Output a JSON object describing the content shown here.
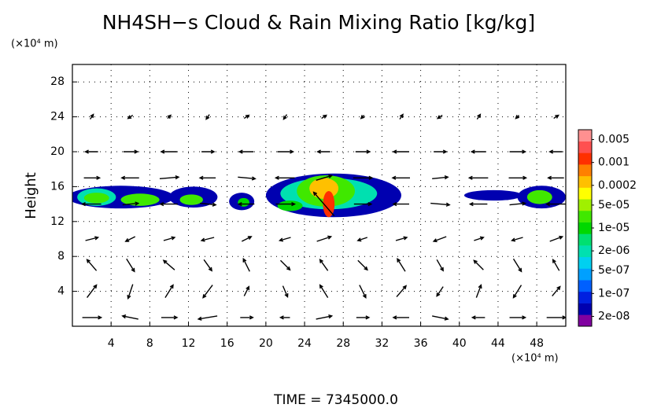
{
  "chart_data": {
    "type": "contour",
    "title": "NH4SH−s Cloud & Rain Mixing Ratio [kg/kg]",
    "x_unit": "(×10⁴ m)",
    "y_unit": "(×10⁴ m)",
    "ylabel": "Height",
    "annotation": "TIME = 7345000.0",
    "xlim": [
      0,
      51
    ],
    "ylim": [
      0,
      30
    ],
    "xticks": [
      4,
      8,
      12,
      16,
      20,
      24,
      28,
      32,
      36,
      40,
      44,
      48
    ],
    "yticks": [
      4,
      8,
      12,
      16,
      20,
      24,
      28
    ],
    "grid": true,
    "colorbar": {
      "log": true,
      "clim": [
        1e-08,
        0.01
      ],
      "colors": [
        "#8000a0",
        "#0000b0",
        "#0020e0",
        "#0060ff",
        "#00a0ff",
        "#00d0f0",
        "#00e0b0",
        "#00e070",
        "#00d800",
        "#40e800",
        "#a0f000",
        "#ffff00",
        "#ffc000",
        "#ff8000",
        "#ff3000",
        "#ff5050",
        "#ff9090"
      ],
      "ticks": [
        0.005,
        0.001,
        0.0002,
        {
          "value": 5e-05,
          "label": "5e-05"
        },
        {
          "value": 1e-05,
          "label": "1e-05"
        },
        {
          "value": 2e-06,
          "label": "2e-06"
        },
        {
          "value": 5e-07,
          "label": "5e-07"
        },
        {
          "value": 1e-07,
          "label": "1e-07"
        },
        {
          "value": 2e-08,
          "label": "2e-08"
        }
      ]
    },
    "patches": [
      {
        "x": 5,
        "y": 14.8,
        "rx": 5.5,
        "ry": 1.3,
        "value": 5e-08
      },
      {
        "x": 2.5,
        "y": 14.8,
        "rx": 2,
        "ry": 1,
        "value": 2e-06
      },
      {
        "x": 2.5,
        "y": 14.7,
        "rx": 1.3,
        "ry": 0.6,
        "value": 3e-05
      },
      {
        "x": 7,
        "y": 14.5,
        "rx": 2,
        "ry": 0.7,
        "value": 3e-05
      },
      {
        "x": 12.5,
        "y": 14.8,
        "rx": 2.5,
        "ry": 1.2,
        "value": 5e-08
      },
      {
        "x": 12.3,
        "y": 14.5,
        "rx": 1.2,
        "ry": 0.6,
        "value": 2e-05
      },
      {
        "x": 17.5,
        "y": 14.3,
        "rx": 1.3,
        "ry": 1,
        "value": 5e-08
      },
      {
        "x": 17.7,
        "y": 14.2,
        "rx": 0.6,
        "ry": 0.5,
        "value": 1e-05
      },
      {
        "x": 27,
        "y": 15,
        "rx": 7,
        "ry": 2.5,
        "value": 5e-08
      },
      {
        "x": 26.5,
        "y": 15.2,
        "rx": 5,
        "ry": 1.8,
        "value": 2e-06
      },
      {
        "x": 22.5,
        "y": 13.8,
        "rx": 1.3,
        "ry": 0.6,
        "value": 1e-05
      },
      {
        "x": 26.2,
        "y": 15.5,
        "rx": 3,
        "ry": 1.8,
        "value": 3e-05
      },
      {
        "x": 26,
        "y": 15.8,
        "rx": 1.5,
        "ry": 1.2,
        "value": 0.0002
      },
      {
        "x": 26.5,
        "y": 14,
        "rx": 0.6,
        "ry": 1.5,
        "value": 0.001
      },
      {
        "x": 43.5,
        "y": 15,
        "rx": 3,
        "ry": 0.6,
        "value": 5e-08
      },
      {
        "x": 48.5,
        "y": 14.8,
        "rx": 2.5,
        "ry": 1.3,
        "value": 5e-08
      },
      {
        "x": 48.3,
        "y": 14.8,
        "rx": 1.3,
        "ry": 0.8,
        "value": 2e-05
      }
    ],
    "vectors": {
      "x": [
        2,
        6,
        10,
        14,
        18,
        22,
        26,
        30,
        34,
        38,
        42,
        46,
        50
      ],
      "y": [
        1,
        4,
        7,
        10,
        14,
        17,
        20,
        24
      ],
      "u": [
        [
          1.2,
          -1,
          1,
          -1.2,
          0.8,
          -0.6,
          1,
          0.8,
          -1,
          1,
          -0.8,
          1,
          1.2
        ],
        [
          0.6,
          -0.3,
          0.5,
          -0.6,
          0.3,
          0.3,
          -0.5,
          0.4,
          0.6,
          -0.4,
          0.3,
          -0.5,
          0.5
        ],
        [
          -0.6,
          0.5,
          -0.7,
          0.5,
          -0.4,
          0.6,
          -0.5,
          0.6,
          -0.5,
          0.4,
          -0.6,
          0.5,
          -0.4
        ],
        [
          0.8,
          -0.6,
          0.7,
          -0.8,
          0.6,
          -0.7,
          0.9,
          -0.6,
          0.7,
          -0.8,
          0.6,
          -0.7,
          0.8
        ],
        [
          -1.2,
          1,
          -1.1,
          1,
          -1,
          1.2,
          -1.3,
          1.1,
          -1,
          1.2,
          -1.1,
          1,
          -1.2
        ],
        [
          1,
          -1.1,
          1.2,
          -1,
          1.1,
          -1.2,
          1,
          1.2,
          -1.1,
          1,
          -1.2,
          1.1,
          -1
        ],
        [
          -0.8,
          0.9,
          -1,
          0.8,
          -0.9,
          1,
          -0.8,
          0.9,
          -1,
          0.8,
          -0.9,
          1,
          -0.8
        ],
        [
          0.2,
          -0.3,
          0.2,
          -0.2,
          0.3,
          -0.2,
          0.3,
          -0.2,
          0.2,
          -0.3,
          0.2,
          -0.2,
          0.3
        ]
      ],
      "w": [
        [
          0,
          0.2,
          0,
          -0.2,
          0,
          0,
          0.2,
          0,
          0,
          -0.2,
          0,
          0,
          0
        ],
        [
          0.8,
          -0.9,
          0.8,
          -0.8,
          0.6,
          -0.7,
          0.8,
          -0.8,
          0.7,
          -0.6,
          0.8,
          -0.8,
          0.6
        ],
        [
          0.7,
          -0.8,
          0.6,
          -0.7,
          0.8,
          -0.6,
          0.7,
          -0.6,
          0.8,
          -0.7,
          0.6,
          -0.8,
          0.7
        ],
        [
          0.2,
          -0.3,
          0.2,
          -0.2,
          0.3,
          -0.2,
          0.3,
          -0.2,
          0.2,
          -0.3,
          0.2,
          -0.2,
          0.3
        ],
        [
          0,
          0.1,
          0,
          -0.1,
          0,
          0,
          1.5,
          0,
          0,
          -0.1,
          0,
          0.1,
          0
        ],
        [
          0,
          0,
          0.1,
          0,
          -0.1,
          0,
          0.3,
          0,
          0,
          0.1,
          0,
          0,
          0
        ],
        [
          0,
          0,
          0,
          0,
          0,
          0,
          0,
          0,
          0,
          0,
          0,
          0,
          0
        ],
        [
          0.3,
          -0.2,
          0.2,
          -0.3,
          0.2,
          -0.3,
          0.2,
          -0.2,
          0.3,
          -0.2,
          0.3,
          -0.2,
          0.2
        ]
      ]
    }
  }
}
